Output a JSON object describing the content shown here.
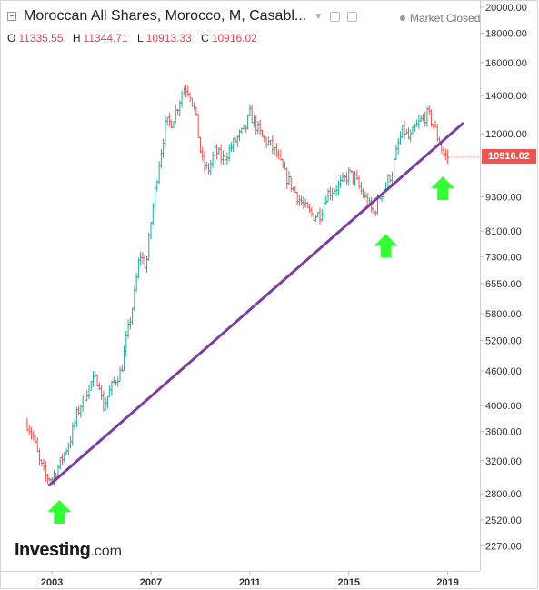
{
  "header": {
    "title": "Moroccan All Shares, Morocco, M, Casabl...",
    "market_status": "Market Closed"
  },
  "ohlc": {
    "o_label": "O",
    "o_value": "11335.55",
    "h_label": "H",
    "h_value": "11344.71",
    "l_label": "L",
    "l_value": "10913.33",
    "c_label": "C",
    "c_value": "10916.02"
  },
  "branding": {
    "name": "Investing",
    "suffix": ".com"
  },
  "colors": {
    "up": "#26a69a",
    "down": "#ef5350",
    "trendline": "#7b3fa0",
    "arrow": "#33ff33"
  },
  "chart_data": {
    "type": "candlestick",
    "interval": "monthly",
    "x_ticks": [
      "2003",
      "2007",
      "2011",
      "2015",
      "2019"
    ],
    "y_ticks": [
      "20000.00",
      "18000.00",
      "16000.00",
      "14000.00",
      "12000.00",
      "9300.00",
      "8100.00",
      "7300.00",
      "6550.00",
      "5800.00",
      "5200.00",
      "4600.00",
      "4000.00",
      "3600.00",
      "3200.00",
      "2800.00",
      "2520.00",
      "2270.00"
    ],
    "y_scale": "log",
    "ylim": [
      2050,
      20600
    ],
    "xlim": [
      2000.9,
      2020.3
    ],
    "last_price_label": "10916.02",
    "trendline": {
      "start": [
        2002.9,
        2900
      ],
      "end": [
        2019.6,
        12500
      ]
    },
    "arrows": [
      [
        2003.3,
        2730
      ],
      [
        2016.5,
        8000
      ],
      [
        2018.8,
        10100
      ]
    ],
    "closes": [
      {
        "t": 2002.0,
        "v": 3720
      },
      {
        "t": 2002.25,
        "v": 3520
      },
      {
        "t": 2002.5,
        "v": 3180
      },
      {
        "t": 2002.75,
        "v": 3000
      },
      {
        "t": 2003.0,
        "v": 2980
      },
      {
        "t": 2003.2,
        "v": 3080
      },
      {
        "t": 2003.5,
        "v": 3300
      },
      {
        "t": 2003.75,
        "v": 3500
      },
      {
        "t": 2004.0,
        "v": 3850
      },
      {
        "t": 2004.3,
        "v": 4150
      },
      {
        "t": 2004.6,
        "v": 4400
      },
      {
        "t": 2004.9,
        "v": 4450
      },
      {
        "t": 2005.05,
        "v": 3950
      },
      {
        "t": 2005.2,
        "v": 4100
      },
      {
        "t": 2005.5,
        "v": 4400
      },
      {
        "t": 2005.8,
        "v": 4600
      },
      {
        "t": 2006.0,
        "v": 5200
      },
      {
        "t": 2006.3,
        "v": 6100
      },
      {
        "t": 2006.55,
        "v": 7400
      },
      {
        "t": 2006.8,
        "v": 7000
      },
      {
        "t": 2007.0,
        "v": 8400
      },
      {
        "t": 2007.3,
        "v": 10500
      },
      {
        "t": 2007.6,
        "v": 12500
      },
      {
        "t": 2007.85,
        "v": 12600
      },
      {
        "t": 2008.1,
        "v": 13500
      },
      {
        "t": 2008.35,
        "v": 14500
      },
      {
        "t": 2008.55,
        "v": 14300
      },
      {
        "t": 2008.8,
        "v": 13000
      },
      {
        "t": 2009.05,
        "v": 10800
      },
      {
        "t": 2009.3,
        "v": 10300
      },
      {
        "t": 2009.6,
        "v": 11200
      },
      {
        "t": 2009.9,
        "v": 10800
      },
      {
        "t": 2010.2,
        "v": 11300
      },
      {
        "t": 2010.5,
        "v": 11800
      },
      {
        "t": 2010.8,
        "v": 12200
      },
      {
        "t": 2011.0,
        "v": 13000
      },
      {
        "t": 2011.25,
        "v": 12400
      },
      {
        "t": 2011.5,
        "v": 11800
      },
      {
        "t": 2011.8,
        "v": 11500
      },
      {
        "t": 2012.1,
        "v": 11000
      },
      {
        "t": 2012.4,
        "v": 10200
      },
      {
        "t": 2012.7,
        "v": 9700
      },
      {
        "t": 2013.0,
        "v": 9200
      },
      {
        "t": 2013.3,
        "v": 8800
      },
      {
        "t": 2013.6,
        "v": 8600
      },
      {
        "t": 2013.85,
        "v": 8700
      },
      {
        "t": 2014.1,
        "v": 9400
      },
      {
        "t": 2014.4,
        "v": 9600
      },
      {
        "t": 2014.7,
        "v": 9800
      },
      {
        "t": 2015.0,
        "v": 10200
      },
      {
        "t": 2015.25,
        "v": 10000
      },
      {
        "t": 2015.5,
        "v": 9500
      },
      {
        "t": 2015.8,
        "v": 9000
      },
      {
        "t": 2016.0,
        "v": 8700
      },
      {
        "t": 2016.25,
        "v": 9300
      },
      {
        "t": 2016.5,
        "v": 9800
      },
      {
        "t": 2016.75,
        "v": 10300
      },
      {
        "t": 2017.0,
        "v": 11500
      },
      {
        "t": 2017.2,
        "v": 12200
      },
      {
        "t": 2017.45,
        "v": 11700
      },
      {
        "t": 2017.7,
        "v": 12300
      },
      {
        "t": 2017.95,
        "v": 12700
      },
      {
        "t": 2018.2,
        "v": 13000
      },
      {
        "t": 2018.4,
        "v": 12500
      },
      {
        "t": 2018.6,
        "v": 11800
      },
      {
        "t": 2018.85,
        "v": 11000
      },
      {
        "t": 2019.0,
        "v": 10916
      }
    ]
  }
}
